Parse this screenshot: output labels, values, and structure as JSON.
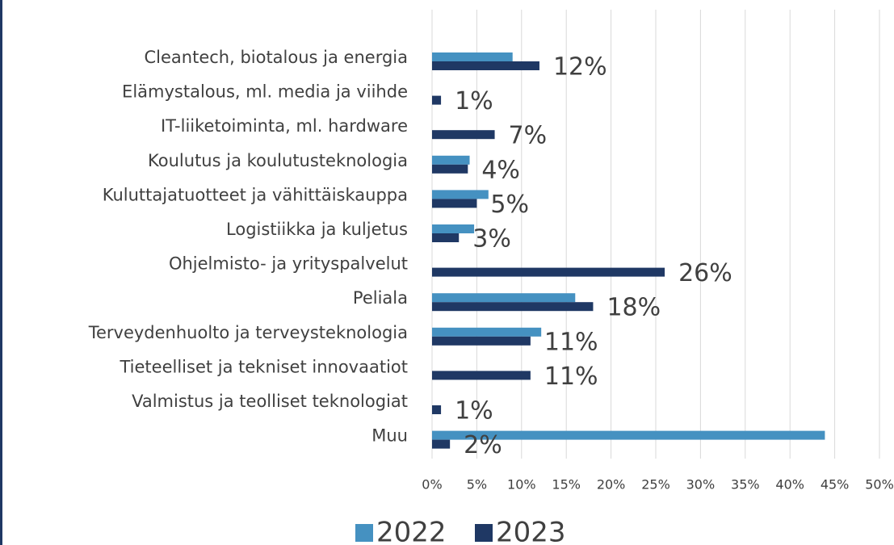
{
  "chart_data": {
    "type": "hbar",
    "categories": [
      "Cleantech, biotalous ja energia",
      "Elämystalous, ml. media ja viihde",
      "IT-liiketoiminta, ml. hardware",
      "Koulutus ja koulutusteknologia",
      "Kuluttajatuotteet ja vähittäiskauppa",
      "Logistiikka ja kuljetus",
      "Ohjelmisto- ja yrityspalvelut",
      "Peliala",
      "Terveydenhuolto ja terveysteknologia",
      "Tieteelliset ja tekniset innovaatiot",
      "Valmistus ja teolliset teknologiat",
      "Muu"
    ],
    "series": [
      {
        "name": "2022",
        "color": "#4591c1",
        "values": [
          9.0,
          null,
          null,
          4.2,
          6.3,
          4.7,
          null,
          16.0,
          12.2,
          null,
          null,
          43.9
        ]
      },
      {
        "name": "2023",
        "color": "#1f3864",
        "values": [
          12,
          1,
          7,
          4,
          5,
          3,
          26,
          18,
          11,
          11,
          1,
          2
        ],
        "value_labels": [
          "12%",
          "1%",
          "7%",
          "4%",
          "5%",
          "3%",
          "26%",
          "18%",
          "11%",
          "11%",
          "1%",
          "2%"
        ]
      }
    ],
    "xlim": [
      0,
      50
    ],
    "xticks": [
      {
        "value": 0,
        "label": "0%"
      },
      {
        "value": 5,
        "label": "5%"
      },
      {
        "value": 10,
        "label": "10%"
      },
      {
        "value": 15,
        "label": "15%"
      },
      {
        "value": 20,
        "label": "20%"
      },
      {
        "value": 25,
        "label": "25%"
      },
      {
        "value": 30,
        "label": "30%"
      },
      {
        "value": 35,
        "label": "35%"
      },
      {
        "value": 40,
        "label": "40%"
      },
      {
        "value": 45,
        "label": "45%"
      },
      {
        "value": 50,
        "label": "50%"
      }
    ],
    "grid": true,
    "legend": "bottom"
  }
}
